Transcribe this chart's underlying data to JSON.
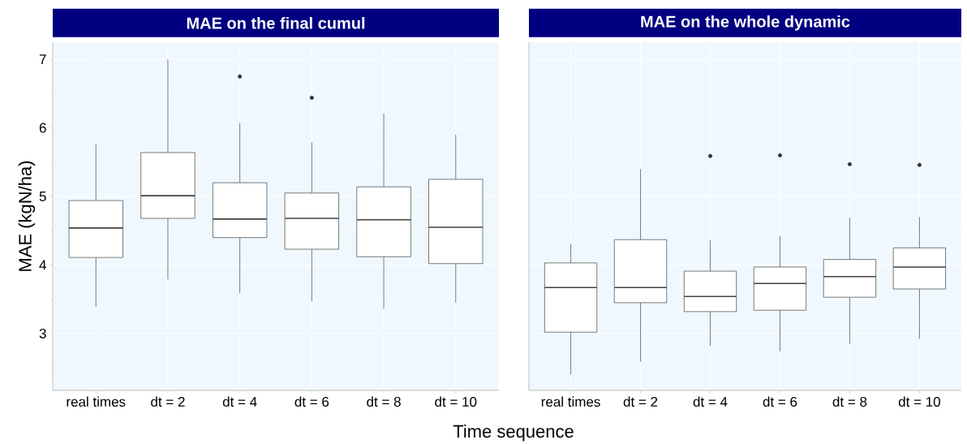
{
  "chart_data": [
    {
      "type": "box",
      "title": "MAE on the final cumul",
      "ylabel": "MAE (kgN/ha)",
      "xlabel": "Time sequence",
      "categories": [
        "real times",
        "dt = 2",
        "dt = 4",
        "dt = 6",
        "dt = 8",
        "dt = 10"
      ],
      "boxes": [
        {
          "low": 3.39,
          "q1": 4.11,
          "median": 4.54,
          "q3": 4.94,
          "high": 5.76
        },
        {
          "low": 3.79,
          "q1": 4.68,
          "median": 5.01,
          "q3": 5.64,
          "high": 7.0
        },
        {
          "low": 3.59,
          "q1": 4.4,
          "median": 4.67,
          "q3": 5.2,
          "high": 6.07,
          "outliers": [
            6.75
          ]
        },
        {
          "low": 3.47,
          "q1": 4.23,
          "median": 4.68,
          "q3": 5.05,
          "high": 5.79,
          "outliers": [
            6.44
          ]
        },
        {
          "low": 3.36,
          "q1": 4.12,
          "median": 4.66,
          "q3": 5.14,
          "high": 6.21
        },
        {
          "low": 3.45,
          "q1": 4.02,
          "median": 4.55,
          "q3": 5.25,
          "high": 5.9
        }
      ],
      "ylim": [
        2.17,
        7.25
      ],
      "yticks": [
        3,
        4,
        5,
        6,
        7
      ],
      "grid": true
    },
    {
      "type": "box",
      "title": "MAE on the whole dynamic",
      "categories": [
        "real times",
        "dt = 2",
        "dt = 4",
        "dt = 6",
        "dt = 8",
        "dt = 10"
      ],
      "boxes": [
        {
          "low": 2.4,
          "q1": 3.02,
          "median": 3.67,
          "q3": 4.03,
          "high": 4.31
        },
        {
          "low": 2.59,
          "q1": 3.45,
          "median": 3.67,
          "q3": 4.37,
          "high": 5.4
        },
        {
          "low": 2.82,
          "q1": 3.32,
          "median": 3.54,
          "q3": 3.91,
          "high": 4.36,
          "outliers": [
            5.59
          ]
        },
        {
          "low": 2.74,
          "q1": 3.34,
          "median": 3.73,
          "q3": 3.97,
          "high": 4.42,
          "outliers": [
            5.6
          ]
        },
        {
          "low": 2.85,
          "q1": 3.53,
          "median": 3.83,
          "q3": 4.08,
          "high": 4.69,
          "outliers": [
            5.47
          ]
        },
        {
          "low": 2.92,
          "q1": 3.65,
          "median": 3.97,
          "q3": 4.25,
          "high": 4.7,
          "outliers": [
            5.46
          ]
        }
      ],
      "ylim": [
        2.17,
        7.25
      ],
      "yticks": [
        3,
        4,
        5,
        6,
        7
      ],
      "grid": true,
      "tick_labels": "x"
    }
  ]
}
